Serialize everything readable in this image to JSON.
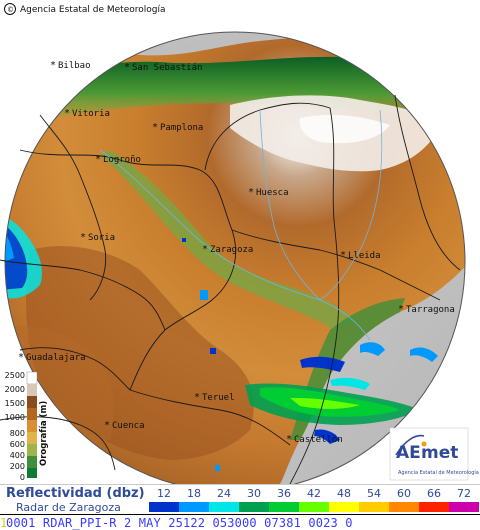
{
  "header": {
    "agency": "Agencia Estatal de Meteorología",
    "copyright": "©"
  },
  "places": [
    {
      "name": "Bilbao"
    },
    {
      "name": "San Sebastián"
    },
    {
      "name": "Vitoria"
    },
    {
      "name": "Pamplona"
    },
    {
      "name": "Logroño"
    },
    {
      "name": "Huesca"
    },
    {
      "name": "Soria"
    },
    {
      "name": "Zaragoza"
    },
    {
      "name": "Lleida"
    },
    {
      "name": "Tarragona"
    },
    {
      "name": "Guadalajara"
    },
    {
      "name": "Teruel"
    },
    {
      "name": "Cuenca"
    },
    {
      "name": "Castellón"
    }
  ],
  "elevation": {
    "title": "Orografía (m)",
    "ticks": [
      "2500",
      "2000",
      "1500",
      "1000",
      "800",
      "600",
      "400",
      "200",
      "0"
    ],
    "ramp_colors": [
      "#ffffff",
      "#d9c8b8",
      "#8a4b1d",
      "#b5651f",
      "#d98f33",
      "#e5b24a",
      "#9fb54a",
      "#3f8f3a",
      "#0f7a33"
    ]
  },
  "logo": {
    "brand_a": "AE",
    "brand_b": "met",
    "caption": "Agencia Estatal de Meteorología"
  },
  "legend": {
    "title": "Reflectividad (dbz)",
    "subtitle": "Radar de Zaragoza",
    "scale": [
      {
        "value": "12",
        "color": "#0033cc"
      },
      {
        "value": "18",
        "color": "#0099ff"
      },
      {
        "value": "24",
        "color": "#00e5e5"
      },
      {
        "value": "30",
        "color": "#00a050"
      },
      {
        "value": "36",
        "color": "#00cc33"
      },
      {
        "value": "42",
        "color": "#66ff00"
      },
      {
        "value": "48",
        "color": "#ffff00"
      },
      {
        "value": "54",
        "color": "#ffcc00"
      },
      {
        "value": "60",
        "color": "#ff8800"
      },
      {
        "value": "66",
        "color": "#ff2200"
      },
      {
        "value": "72",
        "color": "#cc00aa"
      }
    ]
  },
  "status": {
    "level": "1",
    "text": "0001 RDAR_PPI-R   2 MAY 25122 053000 07381 0023 0"
  }
}
